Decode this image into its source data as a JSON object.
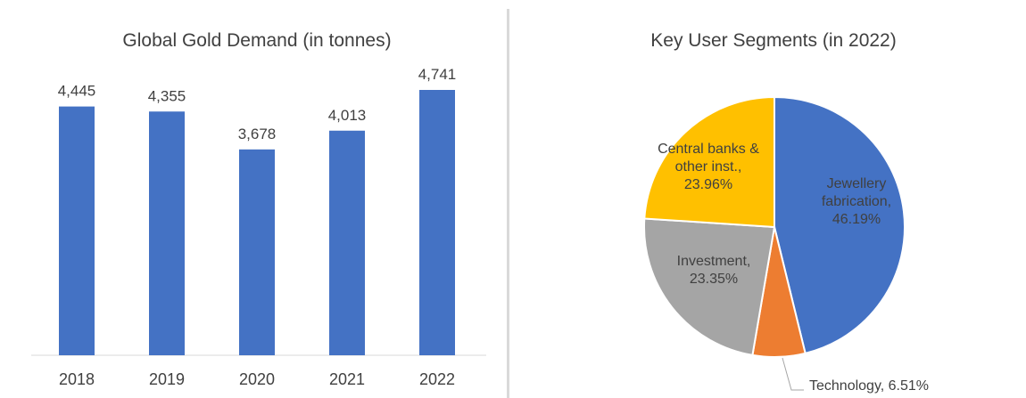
{
  "chart_data": [
    {
      "type": "bar",
      "title": "Global Gold Demand (in tonnes)",
      "categories": [
        "2018",
        "2019",
        "2020",
        "2021",
        "2022"
      ],
      "values": [
        4445,
        4355,
        3678,
        4013,
        4741
      ],
      "value_labels": [
        "4,445",
        "4,355",
        "3,678",
        "4,013",
        "4,741"
      ],
      "xlabel": "",
      "ylabel": "",
      "ylim": [
        0,
        4741
      ],
      "color": "#4472c4",
      "grid": false,
      "legend": "none"
    },
    {
      "type": "pie",
      "title": "Key User Segments (in 2022)",
      "slices": [
        {
          "lines": [
            "Jewellery",
            "fabrication,",
            "46.19%"
          ],
          "value": 46.19,
          "color": "#4472c4"
        },
        {
          "lines": [
            "Technology, 6.51%"
          ],
          "value": 6.51,
          "color": "#ed7d31"
        },
        {
          "lines": [
            "Investment,",
            "23.35%"
          ],
          "value": 23.35,
          "color": "#a5a5a5"
        },
        {
          "lines": [
            "Central banks &",
            "other inst.,",
            "23.96%"
          ],
          "value": 23.96,
          "color": "#ffc000"
        }
      ],
      "legend": "none"
    }
  ]
}
